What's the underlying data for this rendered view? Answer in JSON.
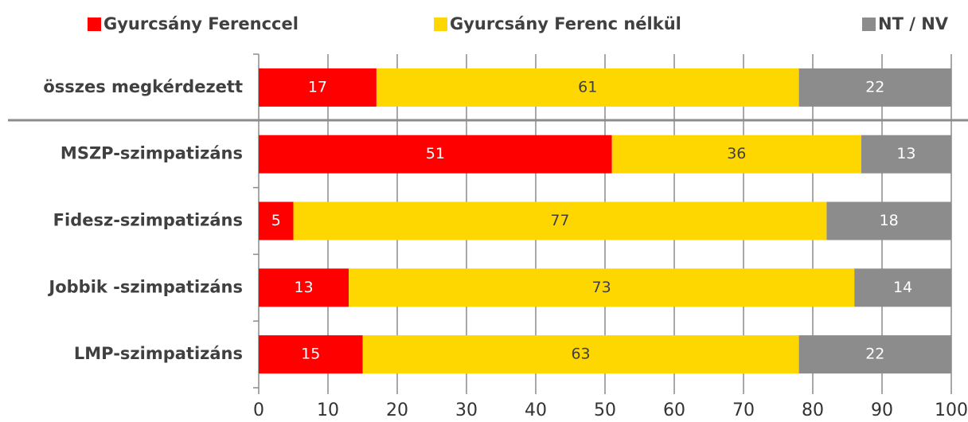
{
  "chart_data": {
    "type": "stacked_bar_horizontal",
    "categories": [
      "összes megkérdezett",
      "MSZP-szimpatizáns",
      "Fidesz-szimpatizáns",
      "Jobbik -szimpatizáns",
      "LMP-szimpatizáns"
    ],
    "series": [
      {
        "name": "Gyurcsány Ferenccel",
        "color": "#ff0000",
        "values": [
          17,
          51,
          5,
          13,
          15
        ]
      },
      {
        "name": "Gyurcsány Ferenc nélkül",
        "color": "#ffd700",
        "values": [
          61,
          36,
          77,
          73,
          63
        ]
      },
      {
        "name": "NT / NV",
        "color": "#8c8c8c",
        "values": [
          22,
          13,
          18,
          14,
          22
        ]
      }
    ],
    "xlim": [
      0,
      100
    ],
    "xticks": [
      0,
      10,
      20,
      30,
      40,
      50,
      60,
      70,
      80,
      90,
      100
    ],
    "grid": true,
    "legend": "top"
  }
}
